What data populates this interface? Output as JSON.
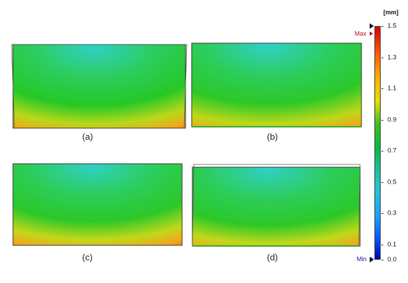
{
  "figure": {
    "panels": [
      {
        "id": "a",
        "caption": "(a)"
      },
      {
        "id": "b",
        "caption": "(b)"
      },
      {
        "id": "c",
        "caption": "(c)"
      },
      {
        "id": "d",
        "caption": "(d)"
      }
    ]
  },
  "colorbar": {
    "unit": "[mm]",
    "max_label": "Max",
    "min_label": "Min",
    "max_color": "#c0002a",
    "min_color": "#1a1a9a",
    "range": [
      0.0,
      1.5
    ],
    "ticks": [
      "1.5",
      "1.3",
      "1.1",
      "0.9",
      "0.7",
      "0.5",
      "0.3",
      "0.1",
      "0.0"
    ]
  }
}
